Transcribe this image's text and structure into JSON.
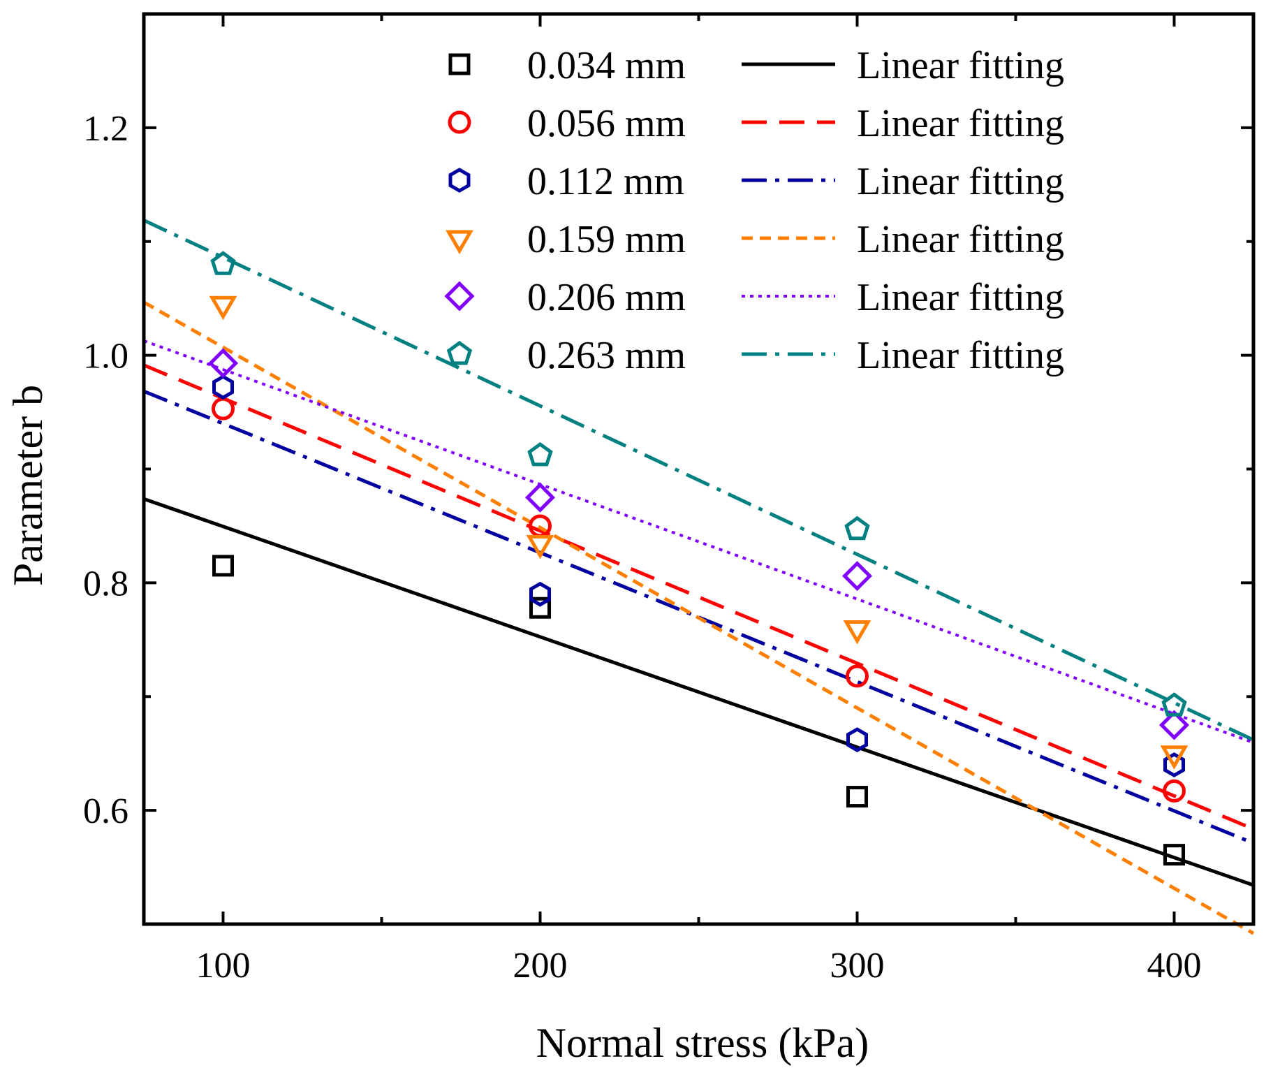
{
  "chart_data": {
    "type": "scatter",
    "title": "",
    "xlabel": "Normal stress (kPa)",
    "ylabel": "Parameter b",
    "xlim": [
      75,
      425
    ],
    "ylim": [
      0.5,
      1.3
    ],
    "xticks": [
      100,
      200,
      300,
      400
    ],
    "xtick_labels": [
      "100",
      "200",
      "300",
      "400"
    ],
    "yticks": [
      0.6,
      0.8,
      1.0,
      1.2
    ],
    "ytick_labels": [
      "0.6",
      "0.8",
      "1.0",
      "1.2"
    ],
    "grid": false,
    "legend_position": "top-right",
    "x": [
      100,
      200,
      300,
      400
    ],
    "series": [
      {
        "name": "0.034 mm",
        "fit_name": "Linear fitting",
        "color": "#000000",
        "marker": "square",
        "line_style": "solid",
        "values": [
          0.815,
          0.778,
          0.612,
          0.561
        ],
        "fit": [
          0.9465,
          -0.00097
        ]
      },
      {
        "name": "0.056 mm",
        "fit_name": "Linear fitting",
        "color": "#ff0000",
        "marker": "circle",
        "line_style": "dash",
        "values": [
          0.953,
          0.85,
          0.718,
          0.617
        ],
        "fit": [
          1.0787,
          -0.001165
        ]
      },
      {
        "name": "0.112 mm",
        "fit_name": "Linear fitting",
        "color": "#0000a0",
        "marker": "hexagon",
        "line_style": "dashdot",
        "values": [
          0.972,
          0.79,
          0.662,
          0.64
        ],
        "fit": [
          1.0535,
          -0.001135
        ]
      },
      {
        "name": "0.159 mm",
        "fit_name": "Linear fitting",
        "color": "#ff8000",
        "marker": "triangle-down",
        "line_style": "shortdash",
        "values": [
          1.045,
          0.835,
          0.76,
          0.65
        ],
        "fit": [
          1.1655,
          -0.001585
        ]
      },
      {
        "name": "0.206 mm",
        "fit_name": "Linear fitting",
        "color": "#8000ff",
        "marker": "diamond",
        "line_style": "dot",
        "values": [
          0.993,
          0.875,
          0.806,
          0.675
        ],
        "fit": [
          1.0884,
          -0.001009
        ]
      },
      {
        "name": "0.263 mm",
        "fit_name": "Linear fitting",
        "color": "#008080",
        "marker": "pentagon",
        "line_style": "dashdot",
        "values": [
          1.08,
          0.912,
          0.847,
          0.692
        ],
        "fit": [
          1.2165,
          -0.001305
        ]
      }
    ]
  }
}
